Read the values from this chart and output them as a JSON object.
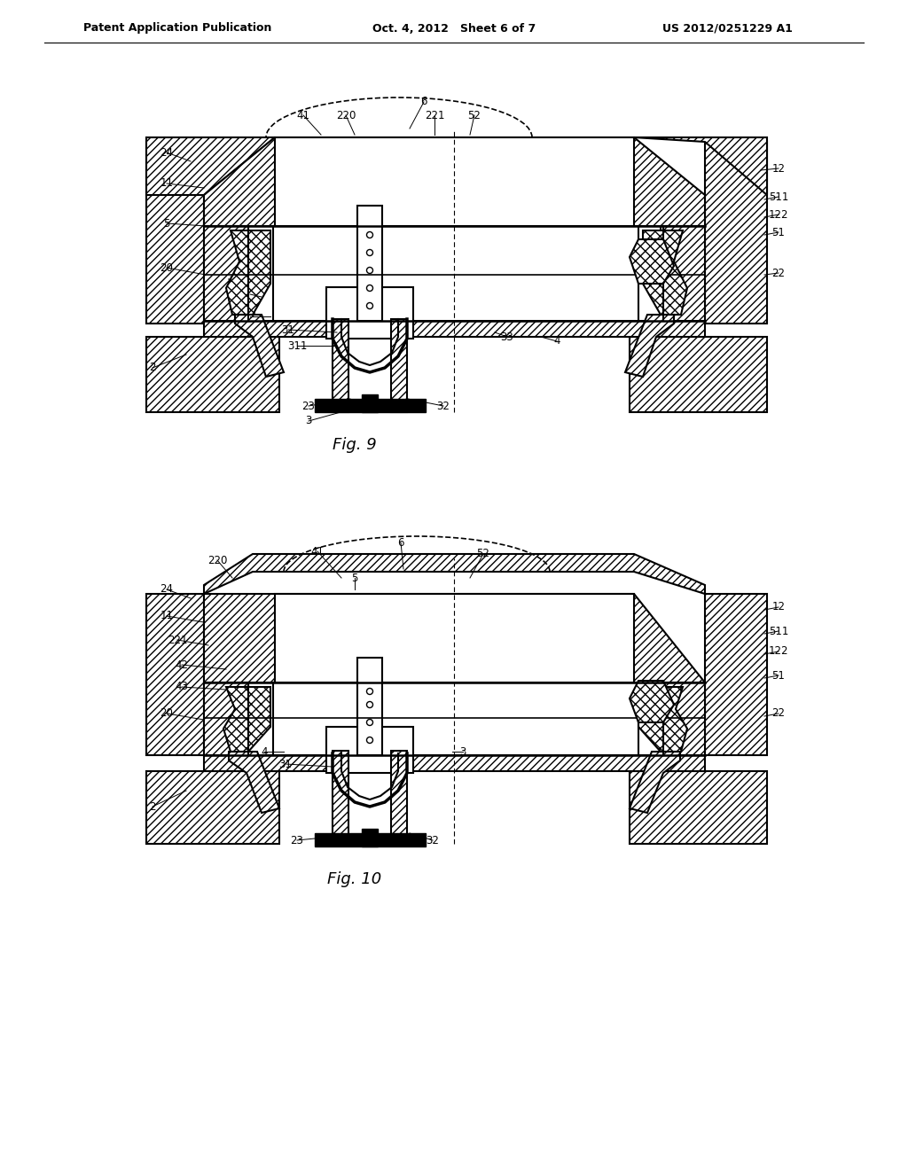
{
  "bg_color": "#ffffff",
  "header_left": "Patent Application Publication",
  "header_center": "Oct. 4, 2012   Sheet 6 of 7",
  "header_right": "US 2012/0251229 A1",
  "fig9_label": "Fig. 9",
  "fig10_label": "Fig. 10",
  "line_color": "#000000"
}
